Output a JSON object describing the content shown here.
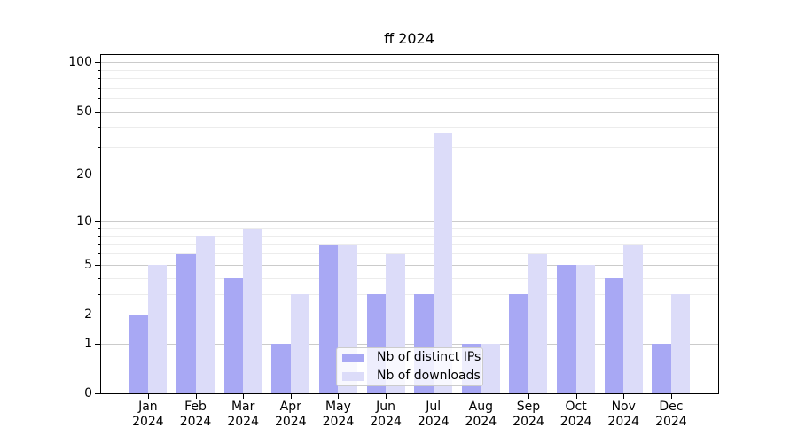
{
  "chart_data": {
    "type": "bar",
    "title": "ff 2024",
    "categories": [
      "Jan",
      "Feb",
      "Mar",
      "Apr",
      "May",
      "Jun",
      "Jul",
      "Aug",
      "Sep",
      "Oct",
      "Nov",
      "Dec"
    ],
    "category_year": "2024",
    "series": [
      {
        "name": "Nb of distinct IPs",
        "color": "#a8a8f4",
        "values": [
          2,
          6,
          4,
          1,
          7,
          3,
          3,
          1,
          3,
          5,
          4,
          1
        ]
      },
      {
        "name": "Nb of downloads",
        "color": "#dcdcf9",
        "values": [
          5,
          8,
          9,
          3,
          7,
          6,
          37,
          1,
          6,
          5,
          7,
          3
        ]
      }
    ],
    "y_axis": {
      "scale": "log1p",
      "major_ticks": [
        0,
        1,
        2,
        5,
        10,
        20,
        50,
        100
      ],
      "minor_ticks": [
        3,
        4,
        6,
        7,
        8,
        9,
        30,
        40,
        60,
        70,
        80,
        90
      ],
      "ylim": [
        0,
        113
      ]
    },
    "grid": "horizontal",
    "legend_position": "lower-center-inside",
    "colors": {
      "major_grid": "#cbcbcb",
      "minor_grid": "#ececec",
      "axis": "#000000"
    }
  }
}
